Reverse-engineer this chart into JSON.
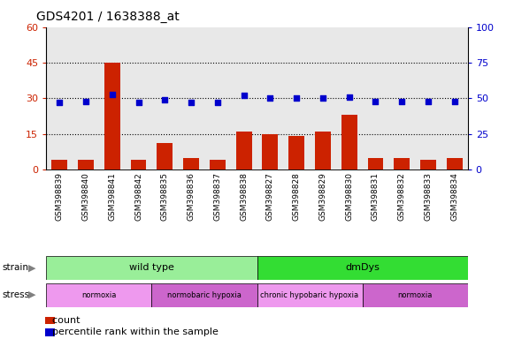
{
  "title": "GDS4201 / 1638388_at",
  "samples": [
    "GSM398839",
    "GSM398840",
    "GSM398841",
    "GSM398842",
    "GSM398835",
    "GSM398836",
    "GSM398837",
    "GSM398838",
    "GSM398827",
    "GSM398828",
    "GSM398829",
    "GSM398830",
    "GSM398831",
    "GSM398832",
    "GSM398833",
    "GSM398834"
  ],
  "counts": [
    4,
    4,
    45,
    4,
    11,
    5,
    4,
    16,
    15,
    14,
    16,
    23,
    5,
    5,
    4,
    5
  ],
  "percentile_ranks": [
    47,
    48,
    53,
    47,
    49,
    47,
    47,
    52,
    50,
    50,
    50,
    51,
    48,
    48,
    48,
    48
  ],
  "ylim_left": [
    0,
    60
  ],
  "ylim_right": [
    0,
    100
  ],
  "yticks_left": [
    0,
    15,
    30,
    45,
    60
  ],
  "yticks_right": [
    0,
    25,
    50,
    75,
    100
  ],
  "strain_groups": [
    {
      "label": "wild type",
      "start": 0,
      "end": 8,
      "color": "#99EE99"
    },
    {
      "label": "dmDys",
      "start": 8,
      "end": 16,
      "color": "#33DD33"
    }
  ],
  "stress_groups": [
    {
      "label": "normoxia",
      "start": 0,
      "end": 4,
      "color": "#EE99EE"
    },
    {
      "label": "normobaric hypoxia",
      "start": 4,
      "end": 8,
      "color": "#CC66CC"
    },
    {
      "label": "chronic hypobaric hypoxia",
      "start": 8,
      "end": 12,
      "color": "#EE99EE"
    },
    {
      "label": "normoxia",
      "start": 12,
      "end": 16,
      "color": "#CC66CC"
    }
  ],
  "bar_color": "#CC2200",
  "dot_color": "#0000CC",
  "tick_color_left": "#CC2200",
  "tick_color_right": "#0000CC"
}
